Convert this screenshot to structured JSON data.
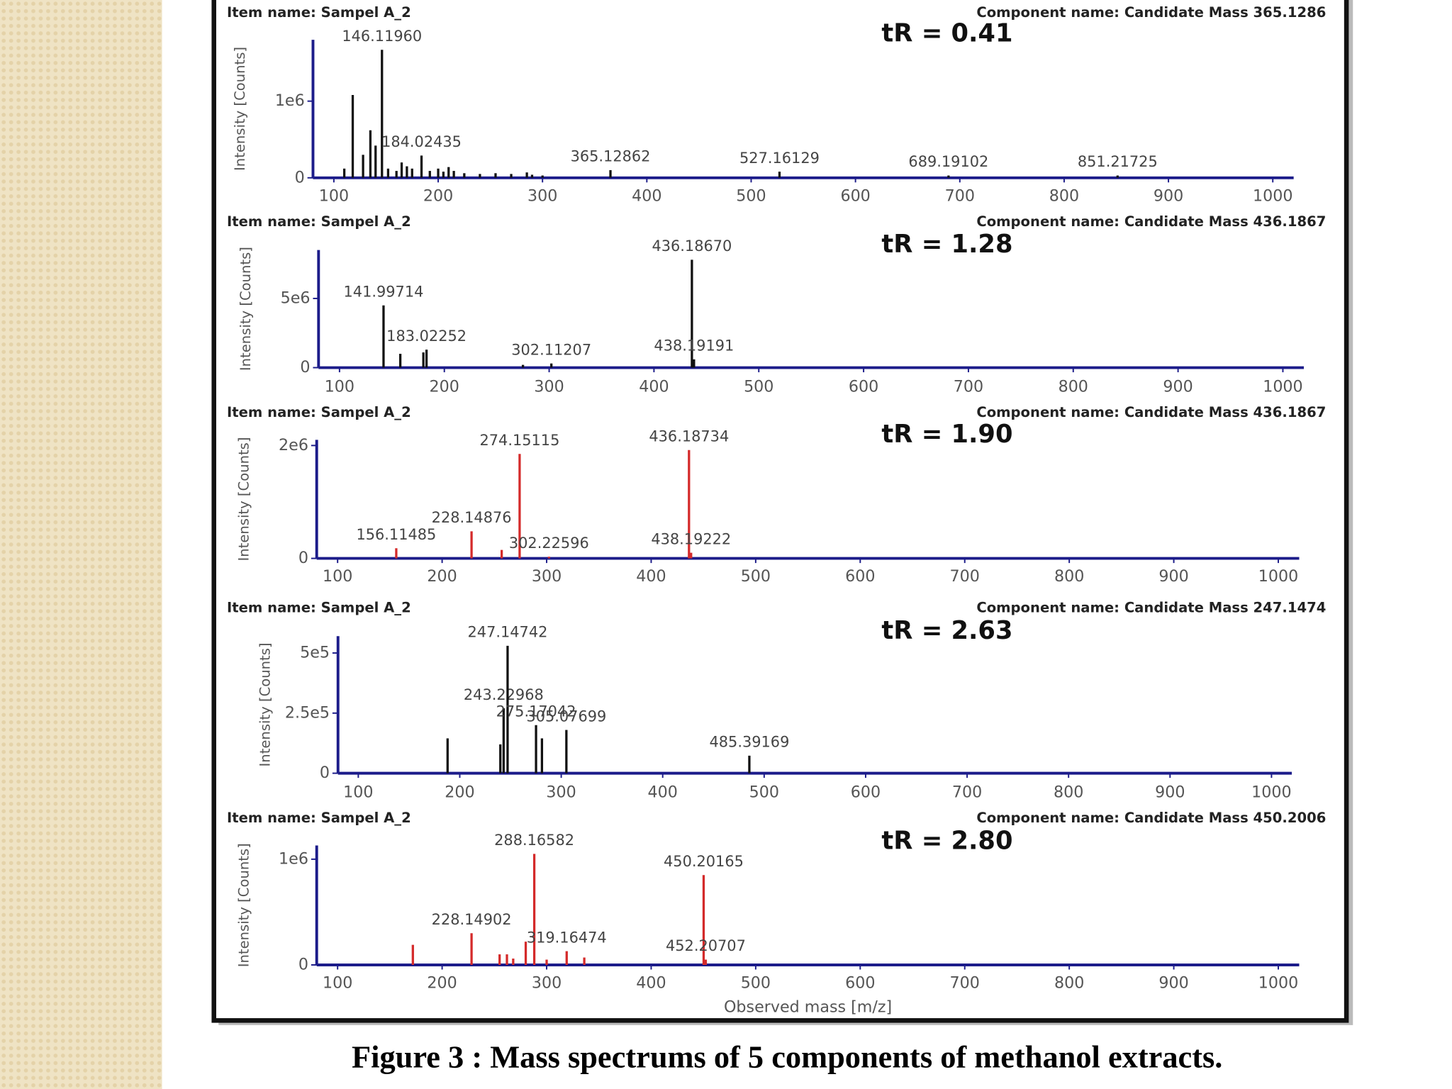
{
  "chart_data": [
    {
      "type": "bar",
      "item_name": "Item name: Sampel A_2",
      "component_name": "Component name: Candidate Mass 365.1286",
      "retention": "tR = 0.41",
      "y_label": "Intensity [Counts]",
      "color": "#111111",
      "x": [
        110,
        118.1,
        128,
        135,
        140,
        146.1196,
        152,
        160,
        165,
        170,
        175,
        184.02435,
        192,
        200,
        205,
        210,
        215,
        225,
        240,
        255,
        270,
        285,
        290,
        300,
        365.12862,
        527.16129,
        689.19102,
        851.21725
      ],
      "values": [
        120000,
        1080000,
        300000,
        620000,
        420000,
        1670000,
        120000,
        90000,
        200000,
        150000,
        120000,
        290000,
        90000,
        120000,
        80000,
        140000,
        90000,
        60000,
        50000,
        60000,
        50000,
        70000,
        40000,
        30000,
        100000,
        80000,
        30000,
        30000
      ],
      "peak_labels": [
        null,
        null,
        null,
        null,
        null,
        "146.11960",
        null,
        null,
        null,
        null,
        null,
        "184.02435",
        null,
        null,
        null,
        null,
        null,
        null,
        null,
        null,
        null,
        null,
        null,
        null,
        "365.12862",
        "527.16129",
        "689.19102",
        "851.21725"
      ],
      "xlim": [
        80,
        1020
      ],
      "ylim": [
        0,
        1800000
      ],
      "xticks": [
        100,
        200,
        300,
        400,
        500,
        600,
        700,
        800,
        900,
        1000
      ],
      "yticks": [
        0,
        {
          "value": 1000000,
          "label": "1e6"
        }
      ]
    },
    {
      "type": "bar",
      "item_name": "Item name: Sampel A_2",
      "component_name": "Component name: Candidate Mass 436.1867",
      "retention": "tR = 1.28",
      "y_label": "Intensity [Counts]",
      "color": "#111111",
      "x": [
        141.99714,
        158,
        180,
        183.02252,
        275,
        302.11207,
        436.1867,
        438.19191
      ],
      "values": [
        4500000,
        1000000,
        1100000,
        1300000,
        200000,
        300000,
        7800000,
        600000
      ],
      "peak_labels": [
        "141.99714",
        null,
        null,
        "183.02252",
        null,
        "302.11207",
        "436.18670",
        "438.19191"
      ],
      "xlim": [
        80,
        1020
      ],
      "ylim": [
        0,
        8500000
      ],
      "xticks": [
        100,
        200,
        300,
        400,
        500,
        600,
        700,
        800,
        900,
        1000
      ],
      "yticks": [
        0,
        {
          "value": 5000000,
          "label": "5e6"
        }
      ]
    },
    {
      "type": "bar",
      "item_name": "Item name: Sampel A_2",
      "component_name": "Component name: Candidate Mass 436.1867",
      "retention": "tR = 1.90",
      "y_label": "Intensity [Counts]",
      "color": "#d42a2a",
      "x": [
        156.11485,
        228.14876,
        257,
        274.15115,
        302.22596,
        436.18734,
        438.19222
      ],
      "values": [
        180000,
        480000,
        150000,
        1850000,
        30000,
        1920000,
        100000
      ],
      "peak_labels": [
        "156.11485",
        "228.14876",
        null,
        "274.15115",
        "302.22596",
        "436.18734",
        "438.19222"
      ],
      "xlim": [
        80,
        1020
      ],
      "ylim": [
        0,
        2100000
      ],
      "xticks": [
        100,
        200,
        300,
        400,
        500,
        600,
        700,
        800,
        900,
        1000
      ],
      "yticks": [
        0,
        {
          "value": 2000000,
          "label": "2e6"
        }
      ]
    },
    {
      "type": "bar",
      "item_name": "Item name: Sampel A_2",
      "component_name": "Component name: Candidate Mass 247.1474",
      "retention": "tR = 2.63",
      "y_label": "Intensity [Counts]",
      "color": "#111111",
      "x": [
        188,
        240,
        243.22968,
        247.14742,
        275.17042,
        281,
        305.07699,
        485.39169
      ],
      "values": [
        145000,
        120000,
        270000,
        530000,
        200000,
        145000,
        180000,
        73000
      ],
      "peak_labels": [
        null,
        null,
        "243.22968",
        "247.14742",
        "275.17042",
        null,
        "305.07699",
        "485.39169"
      ],
      "xlim": [
        80,
        1020
      ],
      "ylim": [
        0,
        570000
      ],
      "xticks": [
        100,
        200,
        300,
        400,
        500,
        600,
        700,
        800,
        900,
        1000
      ],
      "yticks": [
        0,
        {
          "value": 250000,
          "label": "2.5e5"
        },
        {
          "value": 500000,
          "label": "5e5"
        }
      ]
    },
    {
      "type": "bar",
      "item_name": "Item name: Sampel A_2",
      "component_name": "Component name: Candidate Mass 450.2006",
      "retention": "tR = 2.80",
      "y_label": "Intensity [Counts]",
      "x_label": "Observed mass [m/z]",
      "color": "#d42a2a",
      "x": [
        172,
        228.14902,
        255,
        262,
        268,
        280,
        288.16582,
        300,
        319.16474,
        336,
        450.20165,
        452.20707
      ],
      "values": [
        190000,
        300000,
        100000,
        100000,
        60000,
        220000,
        1050000,
        50000,
        130000,
        70000,
        850000,
        50000
      ],
      "peak_labels": [
        null,
        "228.14902",
        null,
        null,
        null,
        null,
        "288.16582",
        null,
        "319.16474",
        null,
        "450.20165",
        "452.20707"
      ],
      "xlim": [
        80,
        1020
      ],
      "ylim": [
        0,
        1130000
      ],
      "xticks": [
        100,
        200,
        300,
        400,
        500,
        600,
        700,
        800,
        900,
        1000
      ],
      "yticks": [
        0,
        {
          "value": 1000000,
          "label": "1e6"
        }
      ]
    }
  ],
  "caption": "Figure 3 : Mass spectrums of 5 components of methanol extracts."
}
